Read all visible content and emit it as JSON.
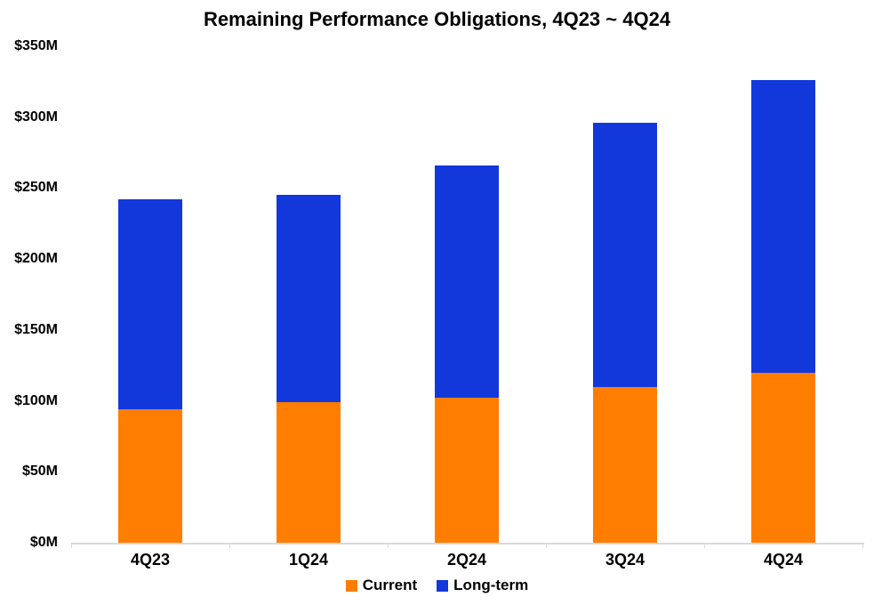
{
  "chart_data": {
    "type": "bar",
    "stacked": true,
    "title": "Remaining Performance Obligations, 4Q23 ~ 4Q24",
    "categories": [
      "4Q23",
      "1Q24",
      "2Q24",
      "3Q24",
      "4Q24"
    ],
    "series": [
      {
        "name": "Current",
        "color": "#FF7D00",
        "values": [
          94,
          99,
          102,
          110,
          120
        ]
      },
      {
        "name": "Long-term",
        "color": "#1238DC",
        "values": [
          148,
          146,
          164,
          186,
          206
        ]
      }
    ],
    "totals": [
      242,
      245,
      266,
      296,
      326
    ],
    "xlabel": "",
    "ylabel": "",
    "ylim": [
      0,
      350
    ],
    "ytick_values": [
      0,
      50,
      100,
      150,
      200,
      250,
      300,
      350
    ],
    "ytick_labels": [
      "$0M",
      "$50M",
      "$100M",
      "$150M",
      "$200M",
      "$250M",
      "$300M",
      "$350M"
    ],
    "grid": false,
    "legend_position": "bottom",
    "axis_color": "#D9D9D9",
    "text_color": "#000000",
    "background_color": "#FFFFFF"
  }
}
